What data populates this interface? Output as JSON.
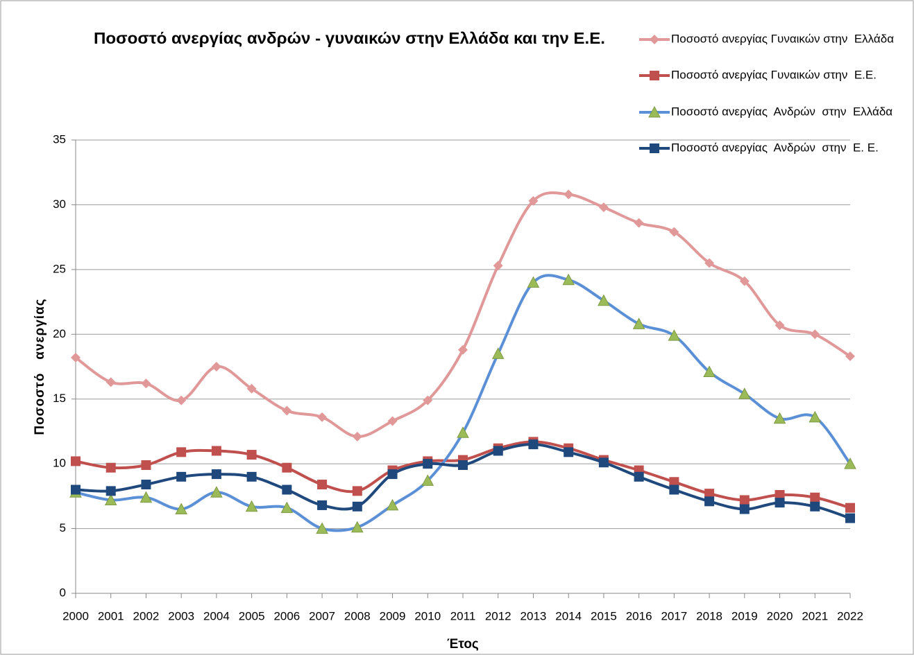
{
  "chart_data": {
    "type": "line",
    "title": "Ποσοστό ανεργίας ανδρών - γυναικών στην Ελλάδα και την Ε.Ε.",
    "x_label": "Έτος",
    "y_label": "Ποσοστό   ανεργίας",
    "categories": [
      "2000",
      "2001",
      "2002",
      "2003",
      "2004",
      "2005",
      "2006",
      "2007",
      "2008",
      "2009",
      "2010",
      "2011",
      "2012",
      "2013",
      "2014",
      "2015",
      "2016",
      "2017",
      "2018",
      "2019",
      "2020",
      "2021",
      "2022"
    ],
    "series": [
      {
        "name": "Ποσοστό ανεργίας Γυναικών στην  Ελλάδα",
        "color": "#e09898",
        "marker": "diamond",
        "marker_color": "#e09898",
        "values": [
          18.2,
          16.3,
          16.2,
          14.9,
          17.5,
          15.8,
          14.1,
          13.6,
          12.1,
          13.3,
          14.9,
          18.8,
          25.3,
          30.3,
          30.8,
          29.8,
          28.6,
          27.9,
          25.5,
          24.1,
          20.7,
          20.0,
          18.3
        ]
      },
      {
        "name": "Ποσοστό ανεργίας Γυναικών στην  Ε.Ε.",
        "color": "#c0504d",
        "marker": "square",
        "marker_color": "#c0504d",
        "values": [
          10.2,
          9.7,
          9.9,
          10.9,
          11.0,
          10.7,
          9.7,
          8.4,
          7.9,
          9.5,
          10.2,
          10.3,
          11.2,
          11.7,
          11.2,
          10.3,
          9.5,
          8.6,
          7.7,
          7.2,
          7.6,
          7.4,
          6.6
        ]
      },
      {
        "name": "Ποσοστό ανεργίας  Ανδρών  στην  Ελλάδα",
        "color": "#5b8fd6",
        "marker": "triangle",
        "marker_color": "#9bbb59",
        "values": [
          7.8,
          7.2,
          7.4,
          6.5,
          7.8,
          6.7,
          6.6,
          5.0,
          5.1,
          6.8,
          8.7,
          12.4,
          18.5,
          24.0,
          24.2,
          22.6,
          20.8,
          19.9,
          17.1,
          15.4,
          13.5,
          13.6,
          10.0
        ]
      },
      {
        "name": "Ποσοστό ανεργίας  Ανδρών  στην  Ε. Ε.",
        "color": "#1f497d",
        "marker": "square",
        "marker_color": "#1f497d",
        "values": [
          8.0,
          7.9,
          8.4,
          9.0,
          9.2,
          9.0,
          8.0,
          6.8,
          6.7,
          9.2,
          10.0,
          9.9,
          11.0,
          11.5,
          10.9,
          10.1,
          9.0,
          8.0,
          7.1,
          6.5,
          7.0,
          6.7,
          5.8
        ]
      }
    ],
    "ylim": [
      0,
      35
    ],
    "yticks": [
      0,
      5,
      10,
      15,
      20,
      25,
      30,
      35
    ],
    "grid": true,
    "smooth": true,
    "legend": "top-right"
  }
}
